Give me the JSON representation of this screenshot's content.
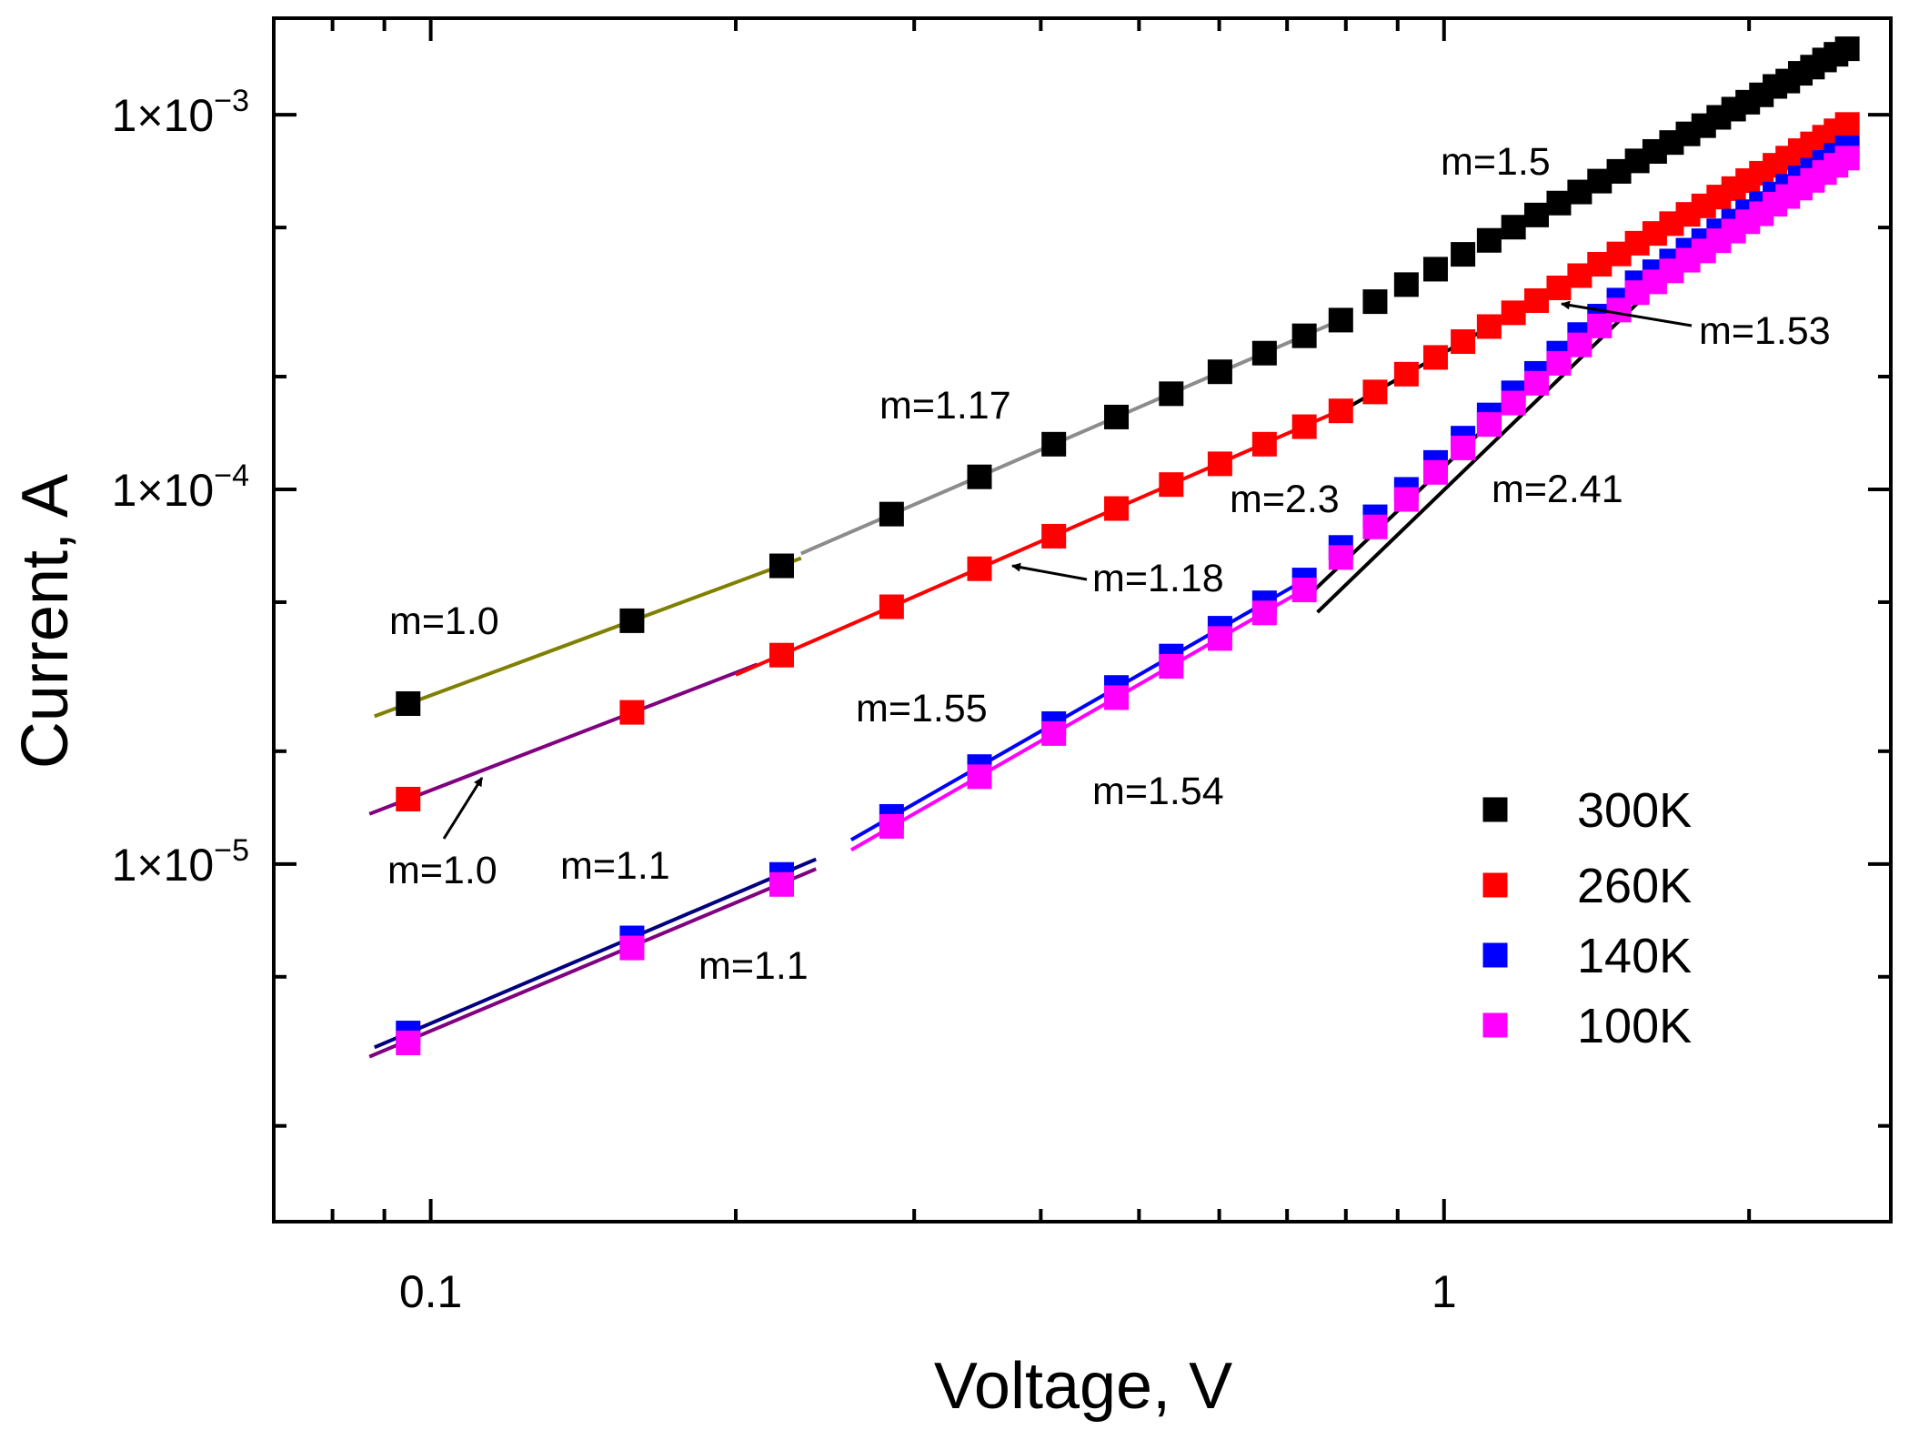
{
  "chart_data": {
    "type": "scatter",
    "title": "",
    "xlabel": "Voltage, V",
    "ylabel": "Current, A",
    "xscale": "log",
    "yscale": "log",
    "xlim": [
      0.07,
      2.76
    ],
    "ylim": [
      1.11e-06,
      0.00181
    ],
    "grid": false,
    "legend_placement": "bottom-right",
    "x_ticks": [
      {
        "value": 0.1,
        "label": "0.1"
      },
      {
        "value": 1,
        "label": "1"
      }
    ],
    "y_ticks": [
      {
        "value": 0.001,
        "mant": "1×10",
        "exp": "−3"
      },
      {
        "value": 0.0001,
        "mant": "1×10",
        "exp": "−4"
      },
      {
        "value": 1e-05,
        "mant": "1×10",
        "exp": "−5"
      }
    ],
    "x": [
      0.095,
      0.158,
      0.222,
      0.285,
      0.348,
      0.412,
      0.475,
      0.538,
      0.601,
      0.665,
      0.728,
      0.791,
      0.855,
      0.918,
      0.981,
      1.044,
      1.108,
      1.171,
      1.234,
      1.298,
      1.361,
      1.424,
      1.488,
      1.551,
      1.614,
      1.677,
      1.741,
      1.804,
      1.867,
      1.931,
      1.994,
      2.057,
      2.121,
      2.184,
      2.247,
      2.31,
      2.374,
      2.437,
      2.5
    ],
    "series": [
      {
        "name": "300K",
        "color": "#000000",
        "values": [
          2.68e-05,
          4.46e-05,
          6.25e-05,
          8.59e-05,
          0.000108,
          0.000132,
          0.000156,
          0.00018,
          0.000206,
          0.000231,
          0.000257,
          0.000283,
          0.000317,
          0.000352,
          0.000387,
          0.000424,
          0.000462,
          0.000501,
          0.00054,
          0.000581,
          0.000622,
          0.000665,
          0.000706,
          0.000753,
          0.000798,
          0.000843,
          0.000889,
          0.000935,
          0.000984,
          0.001035,
          0.00108,
          0.00113,
          0.00119,
          0.00123,
          0.00129,
          0.00134,
          0.0014,
          0.00145,
          0.0015
        ]
      },
      {
        "name": "260K",
        "color": "#ff0000",
        "values": [
          1.49e-05,
          2.54e-05,
          3.61e-05,
          4.86e-05,
          6.14e-05,
          7.5e-05,
          8.89e-05,
          0.000103,
          0.000117,
          0.000132,
          0.000147,
          0.000162,
          0.000182,
          0.000203,
          0.000225,
          0.000248,
          0.000272,
          0.000296,
          0.000319,
          0.000345,
          0.000372,
          0.000399,
          0.000425,
          0.000454,
          0.000482,
          0.000512,
          0.000542,
          0.000571,
          0.000603,
          0.000635,
          0.000667,
          0.000698,
          0.000733,
          0.000766,
          0.000802,
          0.000836,
          0.000871,
          0.000906,
          0.000942
        ]
      },
      {
        "name": "140K",
        "color": "#0000ff",
        "values": [
          3.54e-06,
          6.35e-06,
          9.38e-06,
          1.34e-05,
          1.82e-05,
          2.37e-05,
          2.96e-05,
          3.59e-05,
          4.26e-05,
          4.98e-05,
          5.73e-05,
          7e-05,
          8.45e-05,
          0.0001,
          0.000118,
          0.000137,
          0.000158,
          0.000181,
          0.000204,
          0.000231,
          0.000259,
          0.00029,
          0.00032,
          0.000356,
          0.000381,
          0.000407,
          0.000435,
          0.000461,
          0.00049,
          0.00052,
          0.000551,
          0.000579,
          0.000614,
          0.000644,
          0.000678,
          0.000711,
          0.000746,
          0.00078,
          0.000815
        ]
      },
      {
        "name": "100K",
        "color": "#ff00ff",
        "values": [
          3.33e-06,
          5.97e-06,
          8.82e-06,
          1.26e-05,
          1.71e-05,
          2.23e-05,
          2.78e-05,
          3.37e-05,
          4e-05,
          4.68e-05,
          5.39e-05,
          6.58e-05,
          7.94e-05,
          9.4e-05,
          0.000111,
          0.000129,
          0.000149,
          0.00017,
          0.000192,
          0.000217,
          0.000243,
          0.000273,
          0.000301,
          0.000335,
          0.000358,
          0.000383,
          0.000409,
          0.000433,
          0.000461,
          0.000489,
          0.000518,
          0.000544,
          0.000577,
          0.000605,
          0.000637,
          0.000668,
          0.000701,
          0.000733,
          0.000766
        ]
      }
    ],
    "fit_lines": [
      {
        "series": "300K",
        "slope": 1.0,
        "color": "#808000",
        "from": [
          0.088,
          2.48e-05
        ],
        "to": [
          0.232,
          6.55e-05
        ]
      },
      {
        "series": "300K",
        "slope": 1.17,
        "color": "#8c8c8c",
        "from": [
          0.232,
          6.74e-05
        ],
        "to": [
          0.79,
          0.000283
        ]
      },
      {
        "series": "260K",
        "slope": 1.0,
        "color": "#800080",
        "from": [
          0.087,
          1.36e-05
        ],
        "to": [
          0.21,
          3.41e-05
        ]
      },
      {
        "series": "260K",
        "slope": 1.18,
        "color": "#ff0000",
        "from": [
          0.2,
          3.2e-05
        ],
        "to": [
          0.8,
          0.000165
        ]
      },
      {
        "series": "260K",
        "slope": 1.53,
        "color": "#000000",
        "from": [
          0.78,
          0.000158
        ],
        "to": [
          1.71,
          0.00053
        ]
      },
      {
        "series": "140K",
        "slope": 1.1,
        "color": "#000080",
        "from": [
          0.088,
          3.24e-06
        ],
        "to": [
          0.24,
          1.03e-05
        ]
      },
      {
        "series": "100K",
        "slope": 1.1,
        "color": "#800080",
        "from": [
          0.087,
          3.06e-06
        ],
        "to": [
          0.24,
          9.7e-06
        ]
      },
      {
        "series": "140K",
        "slope": 1.55,
        "color": "#0000ff",
        "from": [
          0.26,
          1.16e-05
        ],
        "to": [
          0.73,
          5.75e-05
        ]
      },
      {
        "series": "100K",
        "slope": 1.54,
        "color": "#ff00ff",
        "from": [
          0.26,
          1.09e-05
        ],
        "to": [
          0.73,
          5.43e-05
        ]
      },
      {
        "series": "140K",
        "slope": 2.3,
        "color": "#000000",
        "from": [
          0.74,
          5.3e-05
        ],
        "to": [
          1.56,
          0.00036
        ]
      },
      {
        "series": "100K",
        "slope": 2.41,
        "color": "#000000",
        "from": [
          0.75,
          4.7e-05
        ],
        "to": [
          1.6,
          0.00034
        ]
      }
    ],
    "annotations": [
      "m=1.5",
      "m=1.53",
      "m=1.17",
      "m=2.3",
      "m=2.41",
      "m=1.18",
      "m=1.0",
      "m=1.55",
      "m=1.54",
      "m=1.0",
      "m=1.1",
      "m=1.1"
    ]
  }
}
